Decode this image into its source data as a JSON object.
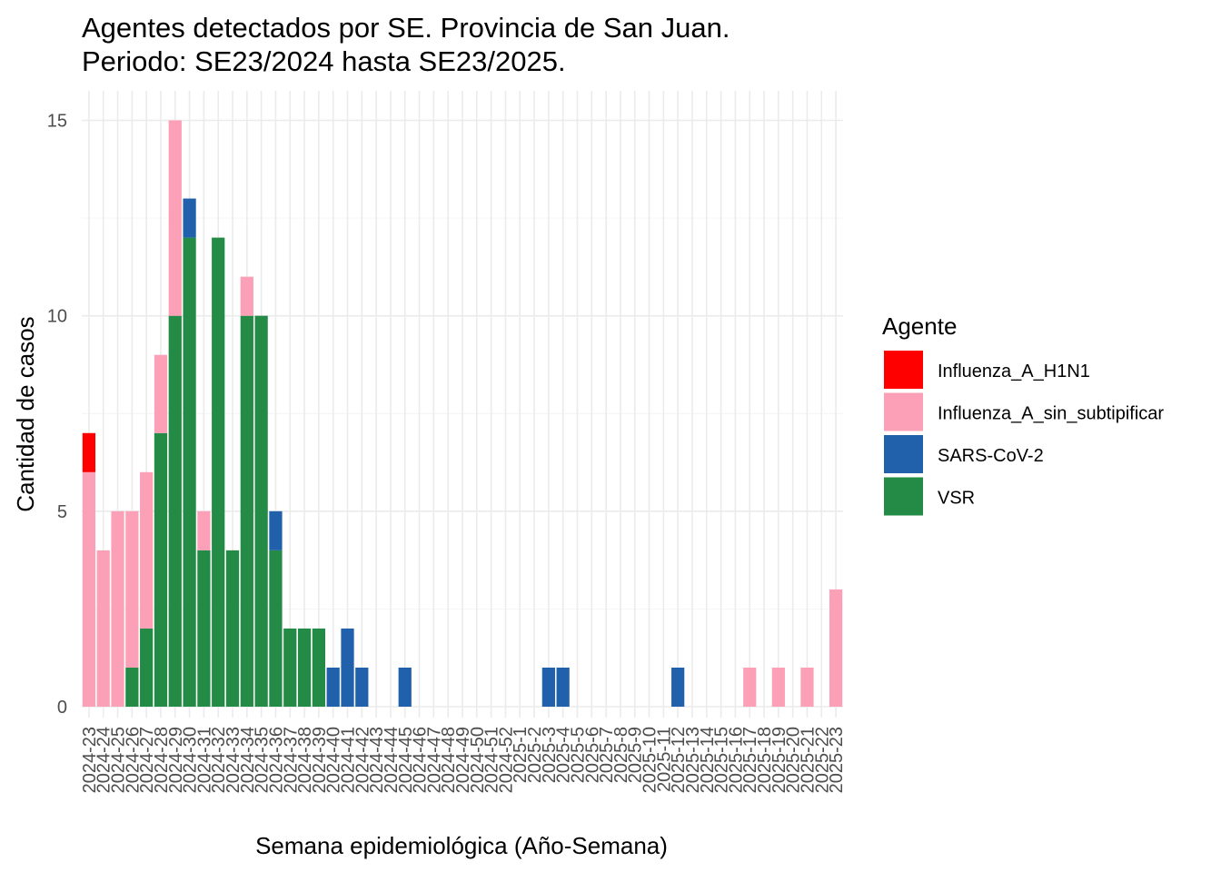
{
  "chart_data": {
    "type": "bar",
    "stacked": true,
    "title_line1": "Agentes detectados por SE. Provincia de San Juan.",
    "title_line2": "Periodo: SE23/2024 hasta SE23/2025.",
    "xlabel": "Semana epidemiológica (Año-Semana)",
    "ylabel": "Cantidad de casos",
    "ylim": [
      0,
      15.8
    ],
    "yticks": [
      0,
      5,
      10,
      15
    ],
    "grid": true,
    "legend_title": "Agente",
    "legend_position": "right",
    "categories": [
      "2024-23",
      "2024-24",
      "2024-25",
      "2024-26",
      "2024-27",
      "2024-28",
      "2024-29",
      "2024-30",
      "2024-31",
      "2024-32",
      "2024-33",
      "2024-34",
      "2024-35",
      "2024-36",
      "2024-37",
      "2024-38",
      "2024-39",
      "2024-40",
      "2024-41",
      "2024-42",
      "2024-43",
      "2024-44",
      "2024-45",
      "2024-46",
      "2024-47",
      "2024-48",
      "2024-49",
      "2024-50",
      "2024-51",
      "2024-52",
      "2025-1",
      "2025-2",
      "2025-3",
      "2025-4",
      "2025-5",
      "2025-6",
      "2025-7",
      "2025-8",
      "2025-9",
      "2025-10",
      "2025-11",
      "2025-12",
      "2025-13",
      "2025-14",
      "2025-15",
      "2025-16",
      "2025-17",
      "2025-18",
      "2025-19",
      "2025-20",
      "2025-21",
      "2025-22",
      "2025-23"
    ],
    "series": [
      {
        "name": "VSR",
        "color": "#238b45",
        "values": [
          0,
          0,
          0,
          1,
          2,
          7,
          10,
          12,
          4,
          12,
          4,
          10,
          10,
          4,
          2,
          2,
          2,
          0,
          0,
          0,
          0,
          0,
          0,
          0,
          0,
          0,
          0,
          0,
          0,
          0,
          0,
          0,
          0,
          0,
          0,
          0,
          0,
          0,
          0,
          0,
          0,
          0,
          0,
          0,
          0,
          0,
          0,
          0,
          0,
          0,
          0,
          0,
          0
        ]
      },
      {
        "name": "SARS-CoV-2",
        "color": "#2161ab",
        "values": [
          0,
          0,
          0,
          0,
          0,
          0,
          0,
          1,
          0,
          0,
          0,
          0,
          0,
          1,
          0,
          0,
          0,
          1,
          2,
          1,
          0,
          0,
          1,
          0,
          0,
          0,
          0,
          0,
          0,
          0,
          0,
          0,
          1,
          1,
          0,
          0,
          0,
          0,
          0,
          0,
          0,
          1,
          0,
          0,
          0,
          0,
          0,
          0,
          0,
          0,
          0,
          0,
          0
        ]
      },
      {
        "name": "Influenza_A_sin_subtipificar",
        "color": "#fba0b7",
        "values": [
          6,
          4,
          5,
          4,
          4,
          2,
          5,
          0,
          1,
          0,
          0,
          1,
          0,
          0,
          0,
          0,
          0,
          0,
          0,
          0,
          0,
          0,
          0,
          0,
          0,
          0,
          0,
          0,
          0,
          0,
          0,
          0,
          0,
          0,
          0,
          0,
          0,
          0,
          0,
          0,
          0,
          0,
          0,
          0,
          0,
          0,
          1,
          0,
          1,
          0,
          1,
          0,
          3
        ]
      },
      {
        "name": "Influenza_A_H1N1",
        "color": "#ff0000",
        "values": [
          1,
          0,
          0,
          0,
          0,
          0,
          0,
          0,
          0,
          0,
          0,
          0,
          0,
          0,
          0,
          0,
          0,
          0,
          0,
          0,
          0,
          0,
          0,
          0,
          0,
          0,
          0,
          0,
          0,
          0,
          0,
          0,
          0,
          0,
          0,
          0,
          0,
          0,
          0,
          0,
          0,
          0,
          0,
          0,
          0,
          0,
          0,
          0,
          0,
          0,
          0,
          0,
          0
        ]
      }
    ],
    "legend_order": [
      "Influenza_A_H1N1",
      "Influenza_A_sin_subtipificar",
      "SARS-CoV-2",
      "VSR"
    ]
  }
}
